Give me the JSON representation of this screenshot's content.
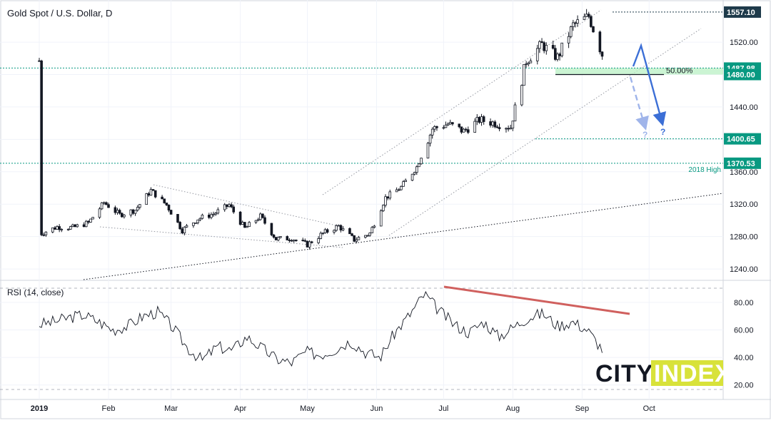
{
  "header": {
    "symbol_title": "Gold Spot / U.S. Dollar, D"
  },
  "rsi_panel": {
    "title": "RSI (14, close)",
    "axis_ticks": [
      "80.00",
      "60.00",
      "40.00",
      "20.00"
    ],
    "ylim": [
      10,
      95
    ],
    "levels": [
      30,
      70
    ]
  },
  "watermark": {
    "part1": "CITY",
    "part2": "INDEX",
    "brand_color": "#d8e23a"
  },
  "annotations": {
    "fib_label": "50.00%",
    "high_label": "2018 High",
    "question_marks": [
      "?",
      "?"
    ]
  },
  "colors": {
    "up_candle": "#131722",
    "down_candle": "#131722",
    "level_line": "#089981",
    "level_box": "#089981",
    "top_box": "#1e3a4a",
    "zone_fill": "#b9f0c4",
    "forecast_arrow": "#3c6fd6",
    "rsi_divergence": "#d0605e"
  },
  "chart_data": [
    {
      "type": "candlestick",
      "title": "Gold Spot / U.S. Dollar, D",
      "x_axis_labels": [
        "2019",
        "Feb",
        "Mar",
        "Apr",
        "May",
        "Jun",
        "Jul",
        "Aug",
        "Sep",
        "Oct"
      ],
      "x_axis_dates": [
        "2019-01-01",
        "2019-02-01",
        "2019-03-01",
        "2019-04-01",
        "2019-05-01",
        "2019-06-01",
        "2019-07-01",
        "2019-08-01",
        "2019-09-01",
        "2019-10-01"
      ],
      "y_ticks": [
        1240,
        1280,
        1320,
        1360,
        1400,
        1440,
        1480,
        1520
      ],
      "ylim": [
        1226,
        1572
      ],
      "price_levels": [
        {
          "value": 1557.1,
          "label": "1557.10",
          "style": "dark-box"
        },
        {
          "value": 1487.98,
          "label": "1487.98",
          "style": "green-box"
        },
        {
          "value": 1480.0,
          "label": "1480.00",
          "style": "green-box"
        },
        {
          "value": 1400.65,
          "label": "1400.65",
          "style": "green-box"
        },
        {
          "value": 1370.53,
          "label": "1370.53",
          "style": "green-box",
          "note": "2018 High"
        }
      ],
      "fib_level": {
        "label": "50.00%",
        "value": 1487.98
      },
      "closes": [
        [
          "2019-01-02",
          1284
        ],
        [
          "2019-01-09",
          1292
        ],
        [
          "2019-01-16",
          1291
        ],
        [
          "2019-01-23",
          1297
        ],
        [
          "2019-01-30",
          1322
        ],
        [
          "2019-02-06",
          1307
        ],
        [
          "2019-02-13",
          1313
        ],
        [
          "2019-02-20",
          1337
        ],
        [
          "2019-02-27",
          1319
        ],
        [
          "2019-03-06",
          1288
        ],
        [
          "2019-03-13",
          1302
        ],
        [
          "2019-03-20",
          1308
        ],
        [
          "2019-03-27",
          1319
        ],
        [
          "2019-04-03",
          1290
        ],
        [
          "2019-04-10",
          1305
        ],
        [
          "2019-04-17",
          1277
        ],
        [
          "2019-04-24",
          1278
        ],
        [
          "2019-05-01",
          1270
        ],
        [
          "2019-05-08",
          1284
        ],
        [
          "2019-05-15",
          1293
        ],
        [
          "2019-05-22",
          1276
        ],
        [
          "2019-05-29",
          1284
        ],
        [
          "2019-06-05",
          1328
        ],
        [
          "2019-06-12",
          1341
        ],
        [
          "2019-06-19",
          1366
        ],
        [
          "2019-06-26",
          1413
        ],
        [
          "2019-07-03",
          1419
        ],
        [
          "2019-07-10",
          1410
        ],
        [
          "2019-07-17",
          1424
        ],
        [
          "2019-07-24",
          1420
        ],
        [
          "2019-07-31",
          1415
        ],
        [
          "2019-08-07",
          1497
        ],
        [
          "2019-08-14",
          1517
        ],
        [
          "2019-08-21",
          1501
        ],
        [
          "2019-08-28",
          1541
        ],
        [
          "2019-09-04",
          1552
        ],
        [
          "2019-09-11",
          1497
        ]
      ]
    },
    {
      "type": "line",
      "title": "RSI (14, close)",
      "ylim": [
        10,
        95
      ],
      "y_ticks": [
        80,
        60,
        40,
        20
      ],
      "values": [
        64,
        66,
        69,
        71,
        66,
        60,
        63,
        70,
        73,
        62,
        47,
        38,
        48,
        45,
        55,
        47,
        39,
        36,
        44,
        42,
        46,
        52,
        44,
        40,
        58,
        71,
        86,
        74,
        64,
        58,
        66,
        55,
        62,
        69,
        72,
        63,
        66,
        60,
        46
      ]
    }
  ]
}
